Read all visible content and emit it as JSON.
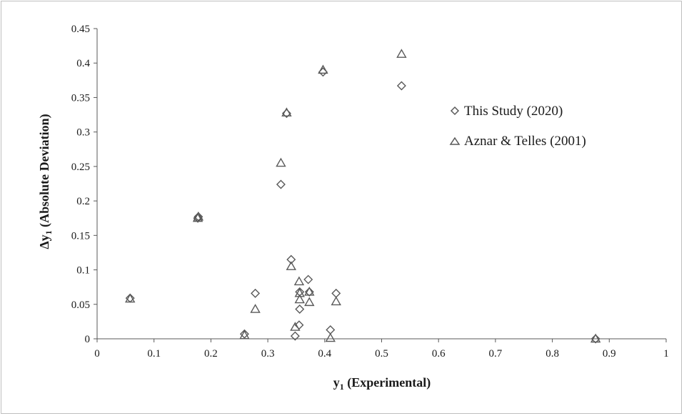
{
  "chart_data": {
    "type": "scatter",
    "xlabel": {
      "main": "y",
      "sub": "1",
      "rest": " (Experimental)"
    },
    "ylabel": {
      "prefix": "Δy",
      "sub": "1",
      "rest": " (Absolute Deviation)"
    },
    "xlim": [
      0,
      1
    ],
    "ylim": [
      0,
      0.45
    ],
    "x_ticks": [
      "0",
      "0.1",
      "0.2",
      "0.3",
      "0.4",
      "0.5",
      "0.6",
      "0.7",
      "0.8",
      "0.9",
      "1"
    ],
    "y_ticks": [
      "0",
      "0.05",
      "0.1",
      "0.15",
      "0.2",
      "0.25",
      "0.3",
      "0.35",
      "0.4",
      "0.45"
    ],
    "grid": false,
    "legend_position": "right",
    "series": [
      {
        "name": "This Study (2020)",
        "marker": "diamond",
        "color": "#595959",
        "points": [
          [
            0.058,
            0.059
          ],
          [
            0.177,
            0.175
          ],
          [
            0.178,
            0.177
          ],
          [
            0.259,
            0.007
          ],
          [
            0.278,
            0.066
          ],
          [
            0.323,
            0.224
          ],
          [
            0.333,
            0.327
          ],
          [
            0.341,
            0.115
          ],
          [
            0.348,
            0.004
          ],
          [
            0.355,
            0.02
          ],
          [
            0.356,
            0.043
          ],
          [
            0.356,
            0.068
          ],
          [
            0.371,
            0.086
          ],
          [
            0.373,
            0.068
          ],
          [
            0.397,
            0.387
          ],
          [
            0.41,
            0.013
          ],
          [
            0.42,
            0.066
          ],
          [
            0.535,
            0.367
          ],
          [
            0.876,
            0.0
          ]
        ]
      },
      {
        "name": "Aznar & Telles (2001)",
        "marker": "triangle",
        "color": "#595959",
        "points": [
          [
            0.058,
            0.058
          ],
          [
            0.177,
            0.175
          ],
          [
            0.178,
            0.177
          ],
          [
            0.259,
            0.005
          ],
          [
            0.278,
            0.043
          ],
          [
            0.323,
            0.255
          ],
          [
            0.333,
            0.328
          ],
          [
            0.341,
            0.105
          ],
          [
            0.348,
            0.017
          ],
          [
            0.355,
            0.083
          ],
          [
            0.356,
            0.057
          ],
          [
            0.356,
            0.066
          ],
          [
            0.373,
            0.053
          ],
          [
            0.373,
            0.068
          ],
          [
            0.397,
            0.39
          ],
          [
            0.41,
            0.001
          ],
          [
            0.42,
            0.054
          ],
          [
            0.535,
            0.413
          ],
          [
            0.876,
            0.0
          ]
        ]
      }
    ]
  }
}
